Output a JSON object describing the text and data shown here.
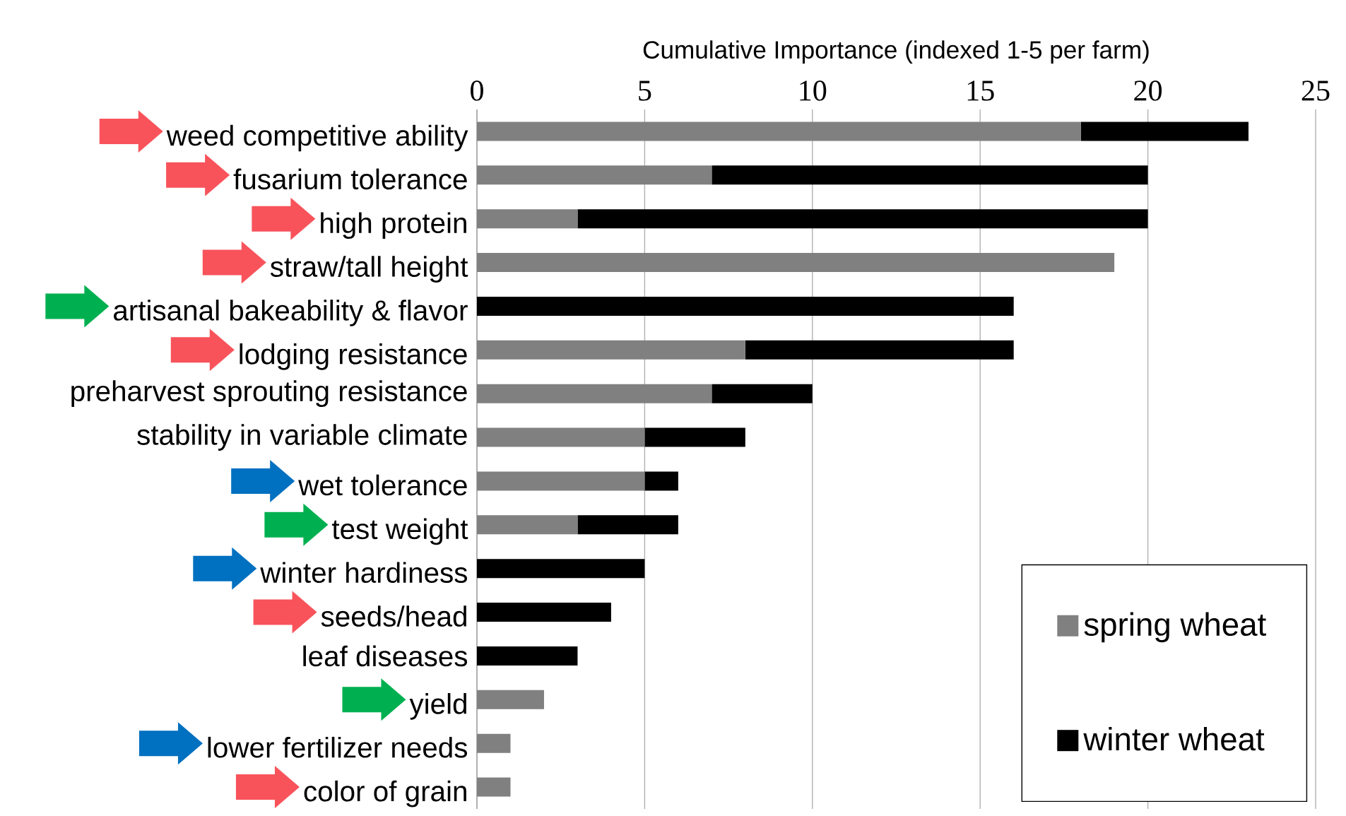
{
  "chart_data": {
    "type": "bar",
    "orientation": "horizontal",
    "stacked": true,
    "xlabel": "Cumulative Importance (indexed 1-5 per farm)",
    "categories": [
      "weed competitive ability",
      "fusarium tolerance",
      "high protein",
      "straw/tall height",
      "artisanal bakeability & flavor",
      "lodging resistance",
      "preharvest sprouting resistance",
      "stability in variable climate",
      "wet tolerance",
      "test weight",
      "winter hardiness",
      "seeds/head",
      "leaf diseases",
      "yield",
      "lower fertilizer needs",
      "color of grain"
    ],
    "series": [
      {
        "name": "spring wheat",
        "color": "#808080",
        "values": [
          18,
          7,
          3,
          19,
          0,
          8,
          7,
          5,
          5,
          3,
          0,
          0,
          0,
          2,
          1,
          1
        ]
      },
      {
        "name": "winter wheat",
        "color": "#000000",
        "values": [
          5,
          13,
          17,
          0,
          16,
          8,
          3,
          3,
          1,
          3,
          5,
          4,
          3,
          0,
          0,
          0
        ]
      }
    ],
    "xlim": [
      0,
      25
    ],
    "xticks": [
      0,
      5,
      10,
      15,
      20,
      25
    ],
    "grid": "x",
    "legend": "bottom right"
  }
}
